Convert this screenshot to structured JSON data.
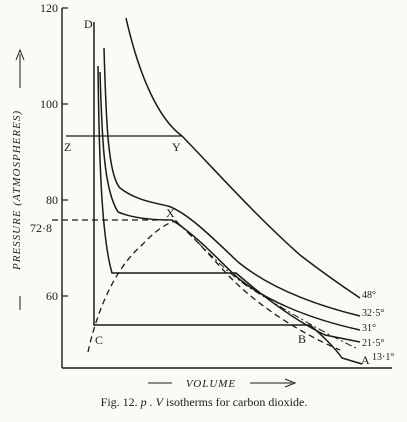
{
  "chart_data": {
    "type": "line",
    "title": "",
    "xlabel": "VOLUME",
    "ylabel": "PRESSURE (ATMOSPHERES)",
    "ylim": [
      45,
      120
    ],
    "yticks": [
      60,
      80,
      100,
      120
    ],
    "grid": false,
    "critical_pressure_label": "72·8",
    "caption": {
      "prefix": "Fig. 12.",
      "italic_part": "p . V",
      "text": "isotherms for carbon dioxide."
    },
    "series": [
      {
        "name": "48°",
        "values": [
          120,
          110,
          100,
          92,
          84,
          76,
          69,
          62,
          57,
          53
        ]
      },
      {
        "name": "32·5°",
        "values": [
          106,
          90,
          78,
          75,
          74,
          72,
          66,
          60,
          55,
          51
        ]
      },
      {
        "name": "31°",
        "values": [
          106,
          85,
          75,
          73.5,
          72.8,
          71,
          64,
          58,
          54,
          50
        ]
      },
      {
        "name": "21·5°",
        "values": [
          104,
          68,
          60,
          60,
          60,
          60,
          57,
          53,
          50,
          48
        ]
      },
      {
        "name": "13·1°",
        "values": [
          118,
          50,
          48,
          48,
          48,
          48,
          48,
          48,
          47,
          45
        ]
      }
    ],
    "annotations": [
      {
        "label": "D",
        "note": "upper end of liquid branch"
      },
      {
        "label": "C",
        "note": "start of liquefaction"
      },
      {
        "label": "B",
        "note": "start of condensation"
      },
      {
        "label": "A",
        "note": "gas"
      },
      {
        "label": "X",
        "note": "critical point"
      },
      {
        "label": "Z",
        "note": ""
      },
      {
        "label": "Y",
        "note": ""
      }
    ]
  }
}
